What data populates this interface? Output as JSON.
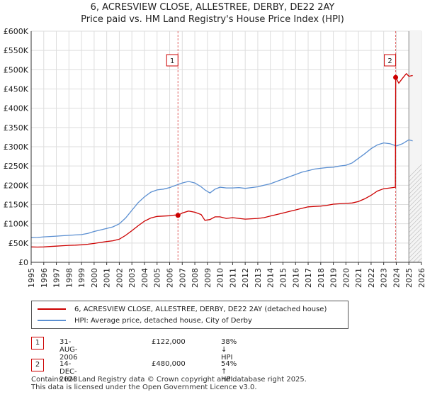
{
  "title": {
    "line1": "6, ACRESVIEW CLOSE, ALLESTREE, DERBY, DE22 2AY",
    "line2": "Price paid vs. HM Land Registry's House Price Index (HPI)"
  },
  "colors": {
    "price": "#cc0000",
    "hpi": "#5b8fd1",
    "grid": "#dddddd",
    "marker_line": "#e06666",
    "future_hatch": "#bbbbbb"
  },
  "chart_data": {
    "type": "line",
    "title": "6, ACRESVIEW CLOSE, ALLESTREE, DERBY, DE22 2AY",
    "xlabel": "",
    "ylabel": "",
    "xlim": [
      1995,
      2026
    ],
    "ylim": [
      0,
      600000
    ],
    "y_ticks": [
      0,
      50000,
      100000,
      150000,
      200000,
      250000,
      300000,
      350000,
      400000,
      450000,
      500000,
      550000,
      600000
    ],
    "y_tick_labels": [
      "£0",
      "£50K",
      "£100K",
      "£150K",
      "£200K",
      "£250K",
      "£300K",
      "£350K",
      "£400K",
      "£450K",
      "£500K",
      "£550K",
      "£600K"
    ],
    "x_ticks": [
      1995,
      1996,
      1997,
      1998,
      1999,
      2000,
      2001,
      2002,
      2003,
      2004,
      2005,
      2006,
      2007,
      2008,
      2009,
      2010,
      2011,
      2012,
      2013,
      2014,
      2015,
      2016,
      2017,
      2018,
      2019,
      2020,
      2021,
      2022,
      2023,
      2024,
      2025,
      2026
    ],
    "x_tick_labels": [
      "1995",
      "1996",
      "1997",
      "1998",
      "1999",
      "2000",
      "2001",
      "2002",
      "2003",
      "2004",
      "2005",
      "2006",
      "2007",
      "2008",
      "2009",
      "2010",
      "2011",
      "2012",
      "2013",
      "2014",
      "2015",
      "2016",
      "2017",
      "2018",
      "2019",
      "2020",
      "2021",
      "2022",
      "2023",
      "2024",
      "2025",
      "2026"
    ],
    "future_start": 2025.0,
    "series": [
      {
        "name": "6, ACRESVIEW CLOSE, ALLESTREE, DERBY, DE22 2AY (detached house)",
        "color": "#cc0000",
        "x": [
          1995.0,
          1995.5,
          1996.0,
          1996.5,
          1997.0,
          1997.5,
          1998.0,
          1998.5,
          1999.0,
          1999.5,
          2000.0,
          2000.5,
          2001.0,
          2001.5,
          2002.0,
          2002.5,
          2003.0,
          2003.5,
          2004.0,
          2004.5,
          2005.0,
          2005.5,
          2006.0,
          2006.4,
          2006.66,
          2007.0,
          2007.5,
          2008.0,
          2008.5,
          2008.8,
          2009.2,
          2009.6,
          2010.0,
          2010.5,
          2011.0,
          2011.5,
          2012.0,
          2012.5,
          2013.0,
          2013.5,
          2014.0,
          2014.5,
          2015.0,
          2015.5,
          2016.0,
          2016.5,
          2017.0,
          2017.5,
          2018.0,
          2018.5,
          2019.0,
          2019.5,
          2020.0,
          2020.5,
          2021.0,
          2021.5,
          2022.0,
          2022.5,
          2023.0,
          2023.5,
          2023.93,
          2023.95,
          2024.2,
          2024.5,
          2024.8,
          2025.0,
          2025.3
        ],
        "values": [
          40000,
          39500,
          40000,
          41000,
          42000,
          43000,
          44000,
          44500,
          45500,
          47000,
          49000,
          51500,
          54000,
          56000,
          60000,
          70000,
          82000,
          95000,
          107000,
          115000,
          119000,
          120000,
          121000,
          122500,
          122000,
          128000,
          133000,
          130000,
          124000,
          109000,
          111000,
          118000,
          118000,
          114000,
          116000,
          114000,
          112000,
          113000,
          114000,
          116000,
          120000,
          124000,
          128000,
          132000,
          136000,
          140000,
          144000,
          145000,
          146000,
          148000,
          151000,
          152000,
          153000,
          154000,
          158000,
          165000,
          174000,
          185000,
          191000,
          193000,
          195000,
          480000,
          465000,
          478000,
          490000,
          483000,
          485000
        ]
      },
      {
        "name": "HPI: Average price, detached house, City of Derby",
        "color": "#5b8fd1",
        "x": [
          1995.0,
          1995.5,
          1996.0,
          1996.5,
          1997.0,
          1997.5,
          1998.0,
          1998.5,
          1999.0,
          1999.5,
          2000.0,
          2000.5,
          2001.0,
          2001.5,
          2002.0,
          2002.5,
          2003.0,
          2003.5,
          2004.0,
          2004.5,
          2005.0,
          2005.5,
          2006.0,
          2006.5,
          2007.0,
          2007.5,
          2008.0,
          2008.5,
          2008.8,
          2009.2,
          2009.6,
          2010.0,
          2010.5,
          2011.0,
          2011.5,
          2012.0,
          2012.5,
          2013.0,
          2013.5,
          2014.0,
          2014.5,
          2015.0,
          2015.5,
          2016.0,
          2016.5,
          2017.0,
          2017.5,
          2018.0,
          2018.5,
          2019.0,
          2019.5,
          2020.0,
          2020.5,
          2021.0,
          2021.5,
          2022.0,
          2022.5,
          2023.0,
          2023.5,
          2024.0,
          2024.5,
          2025.0,
          2025.3
        ],
        "values": [
          64000,
          64500,
          66000,
          67000,
          68000,
          69000,
          70000,
          71000,
          72000,
          75000,
          80000,
          84000,
          88000,
          92000,
          100000,
          115000,
          135000,
          155000,
          170000,
          182000,
          188000,
          190000,
          194000,
          200000,
          206000,
          210000,
          206000,
          196000,
          188000,
          180000,
          190000,
          195000,
          193000,
          193000,
          194000,
          192000,
          194000,
          196000,
          200000,
          204000,
          210000,
          216000,
          222000,
          228000,
          234000,
          238000,
          242000,
          244000,
          246000,
          247000,
          250000,
          252000,
          258000,
          270000,
          282000,
          295000,
          305000,
          310000,
          308000,
          302000,
          308000,
          318000,
          315000
        ]
      }
    ],
    "annotations": [
      {
        "label": "1",
        "x": 2006.66,
        "y": 122000
      },
      {
        "label": "2",
        "x": 2023.95,
        "y": 480000
      }
    ]
  },
  "legend": {
    "items": [
      {
        "label": "6, ACRESVIEW CLOSE, ALLESTREE, DERBY, DE22 2AY (detached house)",
        "color": "#cc0000"
      },
      {
        "label": "HPI: Average price, detached house, City of Derby",
        "color": "#5b8fd1"
      }
    ]
  },
  "transactions": [
    {
      "num": "1",
      "date": "31-AUG-2006",
      "price": "£122,000",
      "hpi": "38% ↓ HPI"
    },
    {
      "num": "2",
      "date": "14-DEC-2023",
      "price": "£480,000",
      "hpi": "54% ↑ HPI"
    }
  ],
  "footer": {
    "line1": "Contains HM Land Registry data © Crown copyright and database right 2025.",
    "line2": "This data is licensed under the Open Government Licence v3.0."
  }
}
